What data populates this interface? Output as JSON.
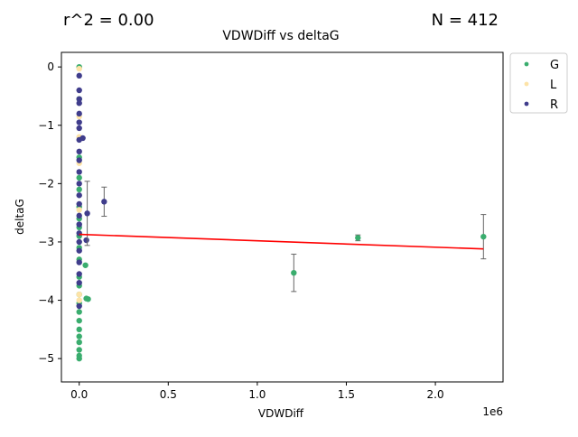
{
  "chart_data": {
    "type": "scatter",
    "title": "VDWDiff vs deltaG",
    "stat_left": "r^2 = 0.00",
    "stat_right": "N = 412",
    "xlabel": "VDWDiff",
    "ylabel": "deltaG",
    "x_offset_label": "1e6",
    "xlim": [
      -100000,
      2380000
    ],
    "ylim": [
      -5.4,
      0.25
    ],
    "x_ticks": [
      0,
      500000,
      1000000,
      1500000,
      2000000
    ],
    "x_tick_labels": [
      "0.0",
      "0.5",
      "1.0",
      "1.5",
      "2.0"
    ],
    "y_ticks": [
      0,
      -1,
      -2,
      -3,
      -4,
      -5
    ],
    "y_tick_labels": [
      "0",
      "−1",
      "−2",
      "−3",
      "−4",
      "−5"
    ],
    "legend_position": "outside-top-right",
    "colors": {
      "G": "#3aad6e",
      "L": "#fde3a7",
      "R": "#403d8c",
      "fit": "#ff0000",
      "errorbar": "#666666"
    },
    "fit_line": {
      "x": [
        0,
        2270000
      ],
      "y": [
        -2.87,
        -3.12
      ]
    },
    "series": [
      {
        "name": "G",
        "points": [
          {
            "x": 0,
            "y": -3.75
          },
          {
            "x": 0,
            "y": -3.9
          },
          {
            "x": 0,
            "y": -4.05
          },
          {
            "x": 0,
            "y": -4.2
          },
          {
            "x": 0,
            "y": -4.35
          },
          {
            "x": 0,
            "y": -4.5
          },
          {
            "x": 0,
            "y": -4.62
          },
          {
            "x": 0,
            "y": -4.72
          },
          {
            "x": 0,
            "y": -4.85
          },
          {
            "x": 0,
            "y": -5.0
          },
          {
            "x": 0,
            "y": -4.95
          },
          {
            "x": 0,
            "y": -3.6
          },
          {
            "x": 0,
            "y": -3.3
          },
          {
            "x": 0,
            "y": -3.1
          },
          {
            "x": 0,
            "y": -2.9
          },
          {
            "x": 0,
            "y": -2.75
          },
          {
            "x": 0,
            "y": -2.6
          },
          {
            "x": 0,
            "y": -2.4
          },
          {
            "x": 0,
            "y": -2.1
          },
          {
            "x": 0,
            "y": -1.9
          },
          {
            "x": 0,
            "y": -1.55
          },
          {
            "x": 0,
            "y": -0.55
          },
          {
            "x": 0,
            "y": 0
          },
          {
            "x": 35000,
            "y": -3.4
          },
          {
            "x": 40000,
            "y": -3.97
          },
          {
            "x": 50000,
            "y": -3.98
          },
          {
            "x": 1205000,
            "y": -3.53,
            "err": 0.32
          },
          {
            "x": 1565000,
            "y": -2.93,
            "err": 0.05
          },
          {
            "x": 2270000,
            "y": -2.91,
            "err": 0.38
          }
        ]
      },
      {
        "name": "L",
        "points": [
          {
            "x": 0,
            "y": -0.03
          },
          {
            "x": 0,
            "y": -1.2
          },
          {
            "x": 0,
            "y": -1.65
          },
          {
            "x": 0,
            "y": -3.9
          },
          {
            "x": 0,
            "y": -4.0
          },
          {
            "x": 0,
            "y": -2.45
          },
          {
            "x": 0,
            "y": -0.85
          }
        ]
      },
      {
        "name": "R",
        "points": [
          {
            "x": 0,
            "y": -0.15
          },
          {
            "x": 0,
            "y": -0.4
          },
          {
            "x": 0,
            "y": -0.55
          },
          {
            "x": 0,
            "y": -0.62
          },
          {
            "x": 0,
            "y": -0.8
          },
          {
            "x": 0,
            "y": -0.95
          },
          {
            "x": 0,
            "y": -1.05
          },
          {
            "x": 0,
            "y": -1.25
          },
          {
            "x": 0,
            "y": -1.45
          },
          {
            "x": 0,
            "y": -1.6
          },
          {
            "x": 0,
            "y": -1.8
          },
          {
            "x": 0,
            "y": -2.0
          },
          {
            "x": 0,
            "y": -2.2
          },
          {
            "x": 0,
            "y": -2.35
          },
          {
            "x": 0,
            "y": -2.55
          },
          {
            "x": 0,
            "y": -2.7
          },
          {
            "x": 0,
            "y": -2.85
          },
          {
            "x": 0,
            "y": -3.0
          },
          {
            "x": 0,
            "y": -3.15
          },
          {
            "x": 0,
            "y": -3.35
          },
          {
            "x": 0,
            "y": -3.55
          },
          {
            "x": 0,
            "y": -3.7
          },
          {
            "x": 0,
            "y": -4.1
          },
          {
            "x": 20000,
            "y": -1.22
          },
          {
            "x": 40000,
            "y": -2.97
          },
          {
            "x": 45000,
            "y": -2.51,
            "err": 0.55
          },
          {
            "x": 140000,
            "y": -2.31,
            "err": 0.25
          }
        ]
      }
    ]
  }
}
